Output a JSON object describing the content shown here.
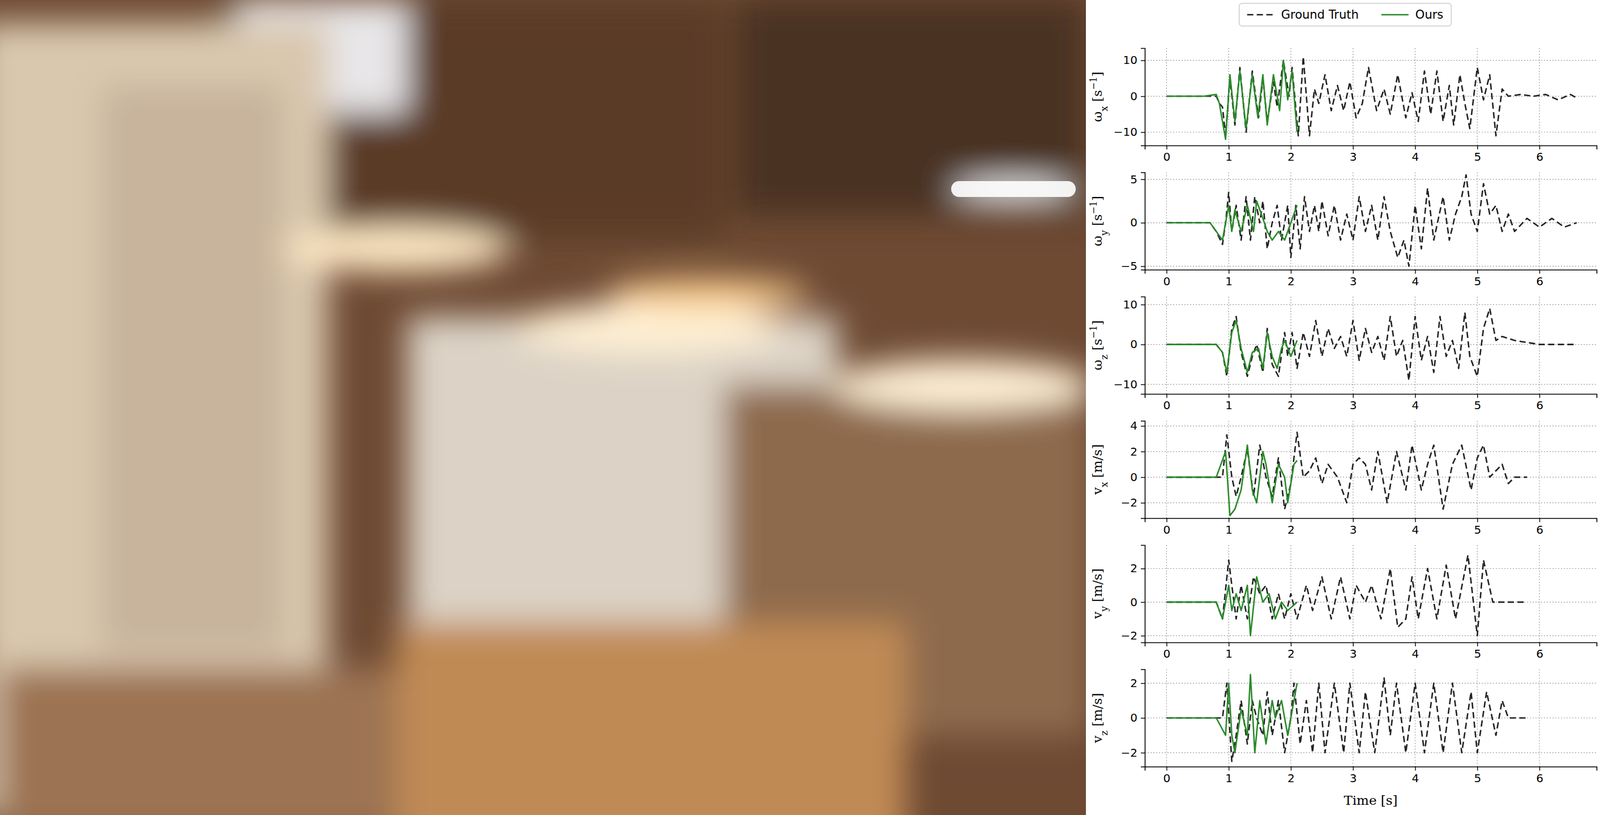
{
  "chart_data": [
    {
      "type": "line",
      "legend": "upper center",
      "grid": true,
      "y_label": [
        {
          "text": "ω"
        },
        {
          "text": "x",
          "sub": true
        },
        {
          "text": " [s"
        },
        {
          "text": "−1",
          "sup": true
        },
        {
          "text": "]"
        }
      ],
      "xlim": [
        -0.35,
        6.92
      ],
      "xticks": [
        0,
        1,
        2,
        3,
        4,
        5,
        6
      ],
      "ylim": [
        -13.7,
        13.4
      ],
      "yticks": [
        {
          "value": -10,
          "label": "−10"
        },
        0,
        10
      ],
      "series": [
        {
          "name": "Ground Truth",
          "color": "#222222",
          "line_style": "dashed",
          "x": [
            0,
            0.8,
            0.85,
            0.9,
            0.95,
            1.02,
            1.1,
            1.18,
            1.28,
            1.38,
            1.48,
            1.55,
            1.62,
            1.72,
            1.78,
            1.88,
            1.97,
            2.02,
            2.12,
            2.2,
            2.3,
            2.38,
            2.45,
            2.55,
            2.65,
            2.75,
            2.85,
            2.95,
            3.05,
            3.15,
            3.25,
            3.38,
            3.5,
            3.6,
            3.72,
            3.85,
            3.95,
            4.05,
            4.15,
            4.25,
            4.35,
            4.45,
            4.55,
            4.62,
            4.72,
            4.8,
            4.88,
            5.0,
            5.1,
            5.2,
            5.3,
            5.4,
            5.5,
            5.7,
            5.9,
            6.1,
            6.3,
            6.5,
            6.6
          ],
          "values": [
            0,
            0,
            -2,
            -3,
            -11,
            5,
            -8,
            8,
            -10,
            7,
            -6,
            5,
            -7,
            4,
            -3,
            10,
            0,
            8,
            -11,
            11,
            -11,
            2,
            -2,
            6,
            -4,
            3,
            -4,
            4,
            -6,
            -2,
            8,
            -4,
            2,
            -5,
            6,
            -6,
            1,
            -7,
            7,
            -5,
            7,
            -7,
            3,
            -8,
            6,
            -2,
            -9,
            8,
            -1,
            6,
            -11,
            2,
            0,
            0.5,
            0,
            0.5,
            -1,
            0.5,
            -0.5
          ]
        },
        {
          "name": "Ours",
          "color": "#2a8a2a",
          "line_style": "solid",
          "x": [
            0,
            0.6,
            0.8,
            0.85,
            0.95,
            1.02,
            1.1,
            1.18,
            1.28,
            1.38,
            1.47,
            1.55,
            1.62,
            1.72,
            1.82,
            1.88,
            1.95,
            2.02,
            2.1
          ],
          "values": [
            0,
            0,
            0.5,
            -2,
            -12,
            6,
            -7,
            7,
            -9,
            6,
            -6,
            6,
            -8,
            6,
            -4,
            10,
            -1,
            7,
            -10
          ]
        }
      ]
    },
    {
      "type": "line",
      "grid": true,
      "y_label": [
        {
          "text": "ω"
        },
        {
          "text": "y",
          "sub": true
        },
        {
          "text": " [s"
        },
        {
          "text": "−1",
          "sup": true
        },
        {
          "text": "]"
        }
      ],
      "xlim": [
        -0.35,
        6.92
      ],
      "xticks": [
        0,
        1,
        2,
        3,
        4,
        5,
        6
      ],
      "ylim": [
        -5.4,
        5.8
      ],
      "yticks": [
        {
          "value": -5,
          "label": "−5"
        },
        0,
        5
      ],
      "series": [
        {
          "color": "#222222",
          "line_style": "dashed",
          "x": [
            0,
            0.7,
            0.8,
            0.9,
            0.95,
            1.0,
            1.05,
            1.12,
            1.2,
            1.28,
            1.35,
            1.42,
            1.5,
            1.55,
            1.62,
            1.7,
            1.78,
            1.85,
            1.95,
            2.0,
            2.08,
            2.15,
            2.22,
            2.3,
            2.38,
            2.45,
            2.5,
            2.6,
            2.7,
            2.8,
            2.9,
            3.0,
            3.1,
            3.2,
            3.3,
            3.4,
            3.5,
            3.6,
            3.72,
            3.82,
            3.9,
            4.0,
            4.1,
            4.2,
            4.3,
            4.45,
            4.55,
            4.65,
            4.75,
            4.82,
            4.9,
            5.0,
            5.1,
            5.2,
            5.3,
            5.4,
            5.5,
            5.6,
            5.8,
            6.0,
            6.2,
            6.4,
            6.6
          ],
          "values": [
            0,
            0,
            -1,
            -2.5,
            0,
            3.5,
            -1,
            2,
            -2,
            3,
            -2,
            3,
            0,
            2.5,
            -3,
            0,
            2,
            -2,
            2,
            -4,
            2,
            -3,
            3,
            -1,
            2,
            -1,
            2.5,
            -1.5,
            2,
            -2,
            1,
            -2,
            3,
            -1,
            2,
            -2,
            3,
            -1,
            -4,
            -2,
            -5,
            2,
            -3,
            4,
            -2,
            3,
            -2,
            1,
            3,
            5.5,
            1,
            -1,
            4.5,
            1,
            2,
            -1,
            1,
            -1,
            0.5,
            -0.5,
            0.5,
            -0.5,
            0
          ]
        },
        {
          "color": "#2a8a2a",
          "line_style": "solid",
          "x": [
            0,
            0.7,
            0.8,
            0.9,
            1.0,
            1.05,
            1.1,
            1.2,
            1.3,
            1.4,
            1.45,
            1.55,
            1.62,
            1.7,
            1.8,
            1.9,
            2.05,
            2.1
          ],
          "values": [
            0,
            0,
            -1,
            -2,
            2,
            -1,
            1.5,
            -1,
            2,
            -1,
            2.5,
            0.5,
            -1,
            -2,
            -1,
            -2,
            1,
            2
          ]
        }
      ]
    },
    {
      "type": "line",
      "grid": true,
      "y_label": [
        {
          "text": "ω"
        },
        {
          "text": "z",
          "sub": true
        },
        {
          "text": " [s"
        },
        {
          "text": "−1",
          "sup": true
        },
        {
          "text": "]"
        }
      ],
      "xlim": [
        -0.35,
        6.92
      ],
      "xticks": [
        0,
        1,
        2,
        3,
        4,
        5,
        6
      ],
      "ylim": [
        -12.4,
        12.0
      ],
      "yticks": [
        {
          "value": -10,
          "label": "−10"
        },
        0,
        10
      ],
      "series": [
        {
          "color": "#222222",
          "line_style": "dashed",
          "x": [
            0,
            0.8,
            0.9,
            0.97,
            1.05,
            1.12,
            1.2,
            1.3,
            1.38,
            1.45,
            1.55,
            1.62,
            1.7,
            1.8,
            1.9,
            1.95,
            2.02,
            2.1,
            2.2,
            2.3,
            2.4,
            2.5,
            2.6,
            2.7,
            2.8,
            2.9,
            3.0,
            3.1,
            3.2,
            3.3,
            3.4,
            3.5,
            3.6,
            3.7,
            3.8,
            3.9,
            4.0,
            4.1,
            4.2,
            4.3,
            4.4,
            4.5,
            4.6,
            4.7,
            4.8,
            4.88,
            5.0,
            5.1,
            5.2,
            5.3,
            5.4,
            5.6,
            5.8,
            6.0,
            6.3,
            6.6
          ],
          "values": [
            0,
            0,
            -2,
            -8,
            4,
            7,
            -2,
            -8,
            -3,
            0,
            -7,
            4,
            -5,
            -8,
            3,
            -3,
            3,
            -6,
            3,
            -3,
            6,
            -3,
            4,
            -1,
            2,
            -3,
            6,
            -4,
            4,
            -2,
            2,
            -4,
            7,
            -3,
            1,
            -9,
            7,
            -4,
            2,
            -7,
            7,
            -3,
            1,
            -6,
            8,
            -3,
            -8,
            4,
            9,
            1,
            2,
            1,
            0.5,
            0,
            0,
            0
          ]
        },
        {
          "color": "#2a8a2a",
          "line_style": "solid",
          "x": [
            0,
            0.8,
            0.9,
            0.97,
            1.05,
            1.12,
            1.2,
            1.3,
            1.38,
            1.48,
            1.55,
            1.62,
            1.7,
            1.78,
            1.85,
            1.9,
            2.0,
            2.1
          ],
          "values": [
            0,
            0,
            -2,
            -7,
            3,
            6,
            -1,
            -7,
            -2,
            -1,
            -6,
            3,
            -3,
            -6,
            -1,
            1,
            -3,
            1
          ]
        }
      ]
    },
    {
      "type": "line",
      "grid": true,
      "y_label": [
        {
          "text": "v"
        },
        {
          "text": "x",
          "sub": true
        },
        {
          "text": " [m/s]"
        }
      ],
      "xlim": [
        -0.35,
        6.92
      ],
      "xticks": [
        0,
        1,
        2,
        3,
        4,
        5,
        6
      ],
      "ylim": [
        -3.2,
        4.4
      ],
      "yticks": [
        {
          "value": -2,
          "label": "−2"
        },
        0,
        2,
        4
      ],
      "series": [
        {
          "color": "#222222",
          "line_style": "dashed",
          "x": [
            0,
            0.8,
            0.9,
            0.97,
            1.05,
            1.12,
            1.2,
            1.3,
            1.4,
            1.5,
            1.6,
            1.7,
            1.8,
            1.9,
            2.0,
            2.1,
            2.2,
            2.3,
            2.4,
            2.5,
            2.6,
            2.75,
            2.9,
            3.0,
            3.1,
            3.2,
            3.3,
            3.4,
            3.55,
            3.7,
            3.85,
            3.95,
            4.1,
            4.2,
            4.3,
            4.45,
            4.6,
            4.75,
            4.9,
            5.0,
            5.1,
            5.2,
            5.3,
            5.4,
            5.5,
            5.6,
            5.8
          ],
          "values": [
            0,
            0,
            0,
            3.3,
            0,
            -1.5,
            0,
            2.2,
            -1.5,
            2.5,
            0,
            -1.5,
            1.5,
            -2.5,
            -0.5,
            3.5,
            0,
            0.5,
            1.5,
            -0.5,
            1,
            0,
            -2,
            1,
            1.5,
            1,
            -1,
            2,
            -2,
            2,
            -1,
            2.5,
            -1,
            1,
            2.5,
            -2.5,
            1,
            2.5,
            -1,
            1.5,
            2.5,
            0,
            0.5,
            1,
            -0.5,
            0,
            0
          ]
        },
        {
          "color": "#2a8a2a",
          "line_style": "solid",
          "x": [
            0,
            0.8,
            0.95,
            1.02,
            1.1,
            1.2,
            1.3,
            1.38,
            1.45,
            1.55,
            1.6,
            1.7,
            1.8,
            1.9,
            1.95,
            2.05,
            2.1
          ],
          "values": [
            0,
            0,
            2,
            -3,
            -2.5,
            -1,
            2.5,
            -1,
            -2,
            2,
            1,
            -2,
            1,
            0,
            -2,
            1,
            1.3
          ]
        }
      ]
    },
    {
      "type": "line",
      "grid": true,
      "y_label": [
        {
          "text": "v"
        },
        {
          "text": "y",
          "sub": true
        },
        {
          "text": " [m/s]"
        }
      ],
      "xlim": [
        -0.35,
        6.92
      ],
      "xticks": [
        0,
        1,
        2,
        3,
        4,
        5,
        6
      ],
      "ylim": [
        -2.4,
        3.4
      ],
      "yticks": [
        {
          "value": -2,
          "label": "−2"
        },
        0,
        2
      ],
      "series": [
        {
          "color": "#222222",
          "line_style": "dashed",
          "x": [
            0,
            0.8,
            0.9,
            1.0,
            1.05,
            1.12,
            1.2,
            1.3,
            1.4,
            1.5,
            1.6,
            1.7,
            1.8,
            1.9,
            2.0,
            2.1,
            2.25,
            2.35,
            2.5,
            2.65,
            2.8,
            2.95,
            3.05,
            3.2,
            3.3,
            3.45,
            3.6,
            3.72,
            3.85,
            3.95,
            4.05,
            4.2,
            4.35,
            4.5,
            4.65,
            4.85,
            5.0,
            5.1,
            5.25,
            5.4,
            5.6,
            5.8
          ],
          "values": [
            0,
            0,
            -1,
            2.5,
            1,
            -1,
            1,
            -1,
            1.5,
            0.5,
            1,
            -1,
            0.5,
            -1,
            0.5,
            -1,
            1,
            -0.5,
            1.5,
            -1,
            1.5,
            -1,
            1,
            0,
            1,
            -1,
            2,
            -1.5,
            -1,
            1.5,
            -1,
            2,
            -1,
            2.2,
            -1,
            2.8,
            -2,
            2.5,
            0,
            0,
            0,
            0
          ]
        },
        {
          "color": "#2a8a2a",
          "line_style": "solid",
          "x": [
            0,
            0.8,
            0.9,
            1.0,
            1.05,
            1.12,
            1.2,
            1.3,
            1.35,
            1.45,
            1.55,
            1.65,
            1.75,
            1.85,
            1.95,
            2.1
          ],
          "values": [
            0,
            0,
            -1,
            1,
            -0.5,
            0.5,
            -0.5,
            1,
            -2,
            1.5,
            0,
            0.5,
            -1,
            0,
            -0.5,
            0
          ]
        }
      ]
    },
    {
      "type": "line",
      "grid": true,
      "y_label": [
        {
          "text": "v"
        },
        {
          "text": "z",
          "sub": true
        },
        {
          "text": " [m/s]"
        }
      ],
      "x_label": "Time [s]",
      "xlim": [
        -0.35,
        6.92
      ],
      "xticks": [
        0,
        1,
        2,
        3,
        4,
        5,
        6
      ],
      "ylim": [
        -2.8,
        2.8
      ],
      "yticks": [
        {
          "value": -2,
          "label": "−2"
        },
        0,
        2
      ],
      "series": [
        {
          "color": "#222222",
          "line_style": "dashed",
          "x": [
            0,
            0.8,
            0.9,
            0.97,
            1.05,
            1.12,
            1.2,
            1.3,
            1.38,
            1.45,
            1.55,
            1.62,
            1.7,
            1.8,
            1.9,
            2.0,
            2.05,
            2.15,
            2.25,
            2.35,
            2.45,
            2.55,
            2.7,
            2.85,
            2.95,
            3.1,
            3.2,
            3.35,
            3.5,
            3.6,
            3.7,
            3.85,
            4.0,
            4.15,
            4.3,
            4.45,
            4.6,
            4.75,
            4.9,
            5.0,
            5.15,
            5.3,
            5.4,
            5.5,
            5.8
          ],
          "values": [
            0,
            0,
            0,
            2,
            -2.5,
            -1,
            1,
            -1.5,
            1,
            0,
            -1,
            1.5,
            -1,
            1,
            -2,
            0,
            2,
            -1.5,
            1,
            -2,
            2,
            -2,
            2,
            -2,
            2,
            -2,
            1.5,
            -2,
            2.3,
            -1,
            2,
            -2,
            2,
            -2,
            2,
            -2,
            2,
            -2,
            1.5,
            -2,
            1.5,
            -1,
            1,
            0,
            0
          ]
        },
        {
          "color": "#2a8a2a",
          "line_style": "solid",
          "x": [
            0,
            0.8,
            0.95,
            1.0,
            1.05,
            1.1,
            1.2,
            1.3,
            1.35,
            1.42,
            1.5,
            1.6,
            1.7,
            1.75,
            1.85,
            1.95,
            2.1
          ],
          "values": [
            0,
            0,
            -1,
            2,
            -1,
            -2,
            0.5,
            -1,
            2.5,
            -2,
            1,
            -1.5,
            1,
            0,
            1,
            -1,
            2
          ]
        }
      ]
    }
  ]
}
